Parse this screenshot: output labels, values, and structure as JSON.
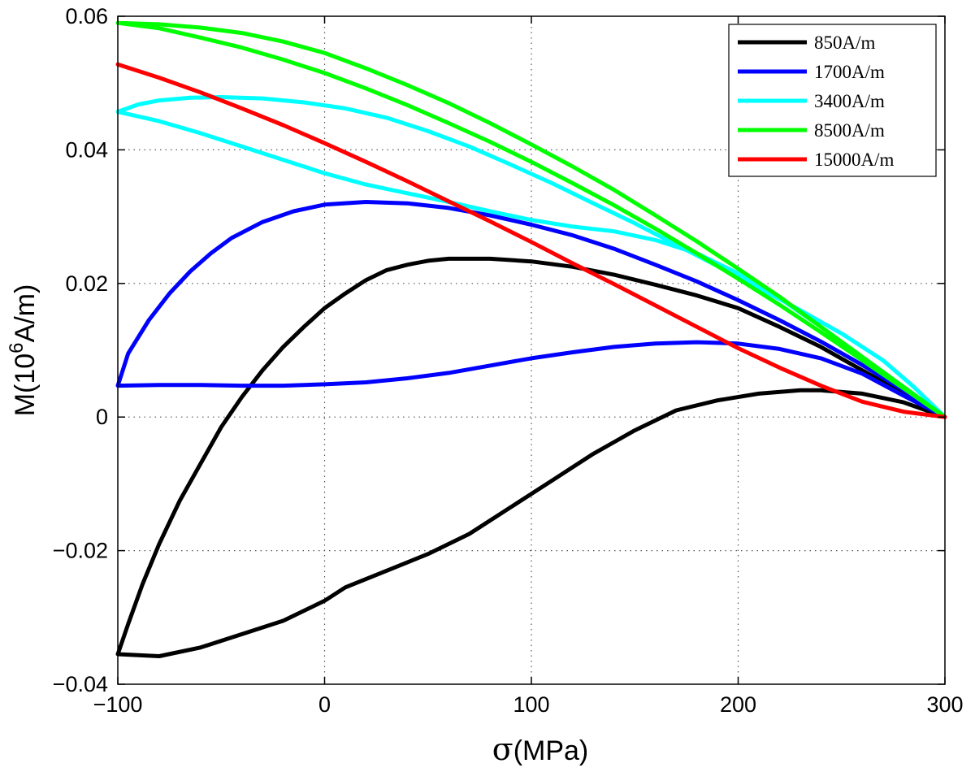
{
  "chart_data": {
    "type": "line",
    "xlabel_symbol": "σ",
    "xlabel_unit": "(MPa)",
    "ylabel_main": "M(10",
    "ylabel_exp": "6",
    "ylabel_unit": "A/m)",
    "xlim": [
      -100,
      300
    ],
    "ylim": [
      -0.04,
      0.06
    ],
    "xticks": [
      -100,
      0,
      100,
      200,
      300
    ],
    "yticks": [
      -0.04,
      -0.02,
      0,
      0.02,
      0.04,
      0.06
    ],
    "xtick_labels": [
      "−100",
      "0",
      "100",
      "200",
      "300"
    ],
    "ytick_labels": [
      "−0.04",
      "−0.02",
      "0",
      "0.02",
      "0.04",
      "0.06"
    ],
    "grid": true,
    "legend_position": "top-right",
    "series": [
      {
        "name": "850A/m",
        "color": "#000000",
        "points": [
          [
            300,
            0
          ],
          [
            280,
            0.0022
          ],
          [
            260,
            0.0035
          ],
          [
            240,
            0.004
          ],
          [
            230,
            0.004
          ],
          [
            210,
            0.0035
          ],
          [
            190,
            0.0025
          ],
          [
            170,
            0.001
          ],
          [
            150,
            -0.002
          ],
          [
            130,
            -0.0055
          ],
          [
            110,
            -0.0095
          ],
          [
            90,
            -0.0135
          ],
          [
            70,
            -0.0175
          ],
          [
            50,
            -0.0205
          ],
          [
            30,
            -0.023
          ],
          [
            10,
            -0.0255
          ],
          [
            0,
            -0.0275
          ],
          [
            -20,
            -0.0305
          ],
          [
            -40,
            -0.0325
          ],
          [
            -60,
            -0.0345
          ],
          [
            -80,
            -0.0358
          ],
          [
            -100,
            -0.0355
          ],
          [
            -95,
            -0.031
          ],
          [
            -88,
            -0.025
          ],
          [
            -80,
            -0.019
          ],
          [
            -70,
            -0.0125
          ],
          [
            -60,
            -0.007
          ],
          [
            -50,
            -0.0015
          ],
          [
            -40,
            0.003
          ],
          [
            -30,
            0.007
          ],
          [
            -20,
            0.0105
          ],
          [
            -10,
            0.0135
          ],
          [
            0,
            0.0163
          ],
          [
            10,
            0.0185
          ],
          [
            20,
            0.0205
          ],
          [
            30,
            0.022
          ],
          [
            40,
            0.0228
          ],
          [
            50,
            0.0234
          ],
          [
            60,
            0.0237
          ],
          [
            80,
            0.0237
          ],
          [
            100,
            0.0233
          ],
          [
            120,
            0.0225
          ],
          [
            140,
            0.0213
          ],
          [
            160,
            0.0198
          ],
          [
            180,
            0.0182
          ],
          [
            200,
            0.0163
          ],
          [
            220,
            0.0135
          ],
          [
            240,
            0.0105
          ],
          [
            260,
            0.007
          ],
          [
            280,
            0.0035
          ],
          [
            300,
            0
          ]
        ]
      },
      {
        "name": "1700A/m",
        "color": "#0000ff",
        "points": [
          [
            300,
            0
          ],
          [
            280,
            0.0032
          ],
          [
            260,
            0.0065
          ],
          [
            240,
            0.0088
          ],
          [
            220,
            0.0102
          ],
          [
            200,
            0.011
          ],
          [
            180,
            0.0112
          ],
          [
            160,
            0.011
          ],
          [
            140,
            0.0105
          ],
          [
            120,
            0.0097
          ],
          [
            100,
            0.0088
          ],
          [
            80,
            0.0077
          ],
          [
            60,
            0.0066
          ],
          [
            40,
            0.0058
          ],
          [
            20,
            0.0052
          ],
          [
            0,
            0.0049
          ],
          [
            -20,
            0.0047
          ],
          [
            -40,
            0.0047
          ],
          [
            -60,
            0.0048
          ],
          [
            -80,
            0.0048
          ],
          [
            -100,
            0.0047
          ],
          [
            -95,
            0.0095
          ],
          [
            -85,
            0.0145
          ],
          [
            -75,
            0.0185
          ],
          [
            -65,
            0.0218
          ],
          [
            -55,
            0.0245
          ],
          [
            -45,
            0.0268
          ],
          [
            -30,
            0.0292
          ],
          [
            -15,
            0.0308
          ],
          [
            0,
            0.0318
          ],
          [
            20,
            0.0322
          ],
          [
            40,
            0.032
          ],
          [
            60,
            0.0313
          ],
          [
            80,
            0.0302
          ],
          [
            100,
            0.0288
          ],
          [
            120,
            0.0272
          ],
          [
            140,
            0.0252
          ],
          [
            160,
            0.0228
          ],
          [
            180,
            0.0203
          ],
          [
            200,
            0.0175
          ],
          [
            220,
            0.0145
          ],
          [
            240,
            0.0113
          ],
          [
            260,
            0.0078
          ],
          [
            280,
            0.004
          ],
          [
            300,
            0
          ]
        ]
      },
      {
        "name": "3400A/m",
        "color": "#00ffff",
        "points": [
          [
            300,
            0
          ],
          [
            280,
            0.0045
          ],
          [
            260,
            0.009
          ],
          [
            240,
            0.0135
          ],
          [
            220,
            0.0178
          ],
          [
            200,
            0.0215
          ],
          [
            180,
            0.0245
          ],
          [
            160,
            0.0265
          ],
          [
            140,
            0.0278
          ],
          [
            120,
            0.0285
          ],
          [
            100,
            0.0295
          ],
          [
            80,
            0.0308
          ],
          [
            60,
            0.0322
          ],
          [
            40,
            0.0335
          ],
          [
            20,
            0.0348
          ],
          [
            0,
            0.0365
          ],
          [
            -20,
            0.0385
          ],
          [
            -40,
            0.0405
          ],
          [
            -60,
            0.0425
          ],
          [
            -80,
            0.0443
          ],
          [
            -100,
            0.0457
          ],
          [
            -90,
            0.0468
          ],
          [
            -80,
            0.0474
          ],
          [
            -65,
            0.0478
          ],
          [
            -50,
            0.0479
          ],
          [
            -30,
            0.0477
          ],
          [
            -10,
            0.0471
          ],
          [
            10,
            0.0462
          ],
          [
            30,
            0.0448
          ],
          [
            50,
            0.0428
          ],
          [
            70,
            0.0405
          ],
          [
            90,
            0.0378
          ],
          [
            110,
            0.035
          ],
          [
            130,
            0.032
          ],
          [
            150,
            0.029
          ],
          [
            170,
            0.0258
          ],
          [
            190,
            0.0226
          ],
          [
            210,
            0.0193
          ],
          [
            230,
            0.016
          ],
          [
            250,
            0.0125
          ],
          [
            270,
            0.0085
          ],
          [
            285,
            0.0045
          ],
          [
            300,
            0
          ]
        ]
      },
      {
        "name": "8500A/m",
        "color": "#00ff00",
        "points": [
          [
            300,
            0
          ],
          [
            280,
            0.0045
          ],
          [
            260,
            0.009
          ],
          [
            240,
            0.0135
          ],
          [
            220,
            0.018
          ],
          [
            200,
            0.0222
          ],
          [
            180,
            0.0263
          ],
          [
            160,
            0.0302
          ],
          [
            140,
            0.034
          ],
          [
            120,
            0.0375
          ],
          [
            100,
            0.0408
          ],
          [
            80,
            0.044
          ],
          [
            60,
            0.047
          ],
          [
            40,
            0.0497
          ],
          [
            20,
            0.0522
          ],
          [
            0,
            0.0545
          ],
          [
            -20,
            0.0562
          ],
          [
            -40,
            0.0575
          ],
          [
            -60,
            0.0583
          ],
          [
            -80,
            0.0588
          ],
          [
            -100,
            0.059
          ],
          [
            -80,
            0.0582
          ],
          [
            -60,
            0.0568
          ],
          [
            -40,
            0.0553
          ],
          [
            -20,
            0.0535
          ],
          [
            0,
            0.0515
          ],
          [
            20,
            0.0492
          ],
          [
            40,
            0.0467
          ],
          [
            60,
            0.044
          ],
          [
            80,
            0.0412
          ],
          [
            100,
            0.0382
          ],
          [
            120,
            0.035
          ],
          [
            140,
            0.0317
          ],
          [
            160,
            0.0282
          ],
          [
            180,
            0.0245
          ],
          [
            200,
            0.0207
          ],
          [
            220,
            0.0168
          ],
          [
            240,
            0.0127
          ],
          [
            260,
            0.0085
          ],
          [
            280,
            0.0043
          ],
          [
            300,
            0
          ]
        ]
      },
      {
        "name": "15000A/m",
        "color": "#ff0000",
        "points": [
          [
            -100,
            0.0528
          ],
          [
            -80,
            0.0508
          ],
          [
            -60,
            0.0486
          ],
          [
            -40,
            0.0462
          ],
          [
            -20,
            0.0437
          ],
          [
            0,
            0.041
          ],
          [
            20,
            0.0382
          ],
          [
            40,
            0.0353
          ],
          [
            60,
            0.0323
          ],
          [
            80,
            0.0293
          ],
          [
            100,
            0.0262
          ],
          [
            120,
            0.023
          ],
          [
            140,
            0.0199
          ],
          [
            160,
            0.0167
          ],
          [
            180,
            0.0135
          ],
          [
            200,
            0.0103
          ],
          [
            220,
            0.0074
          ],
          [
            240,
            0.0047
          ],
          [
            260,
            0.0023
          ],
          [
            280,
            0.0008
          ],
          [
            300,
            0
          ]
        ]
      }
    ]
  }
}
